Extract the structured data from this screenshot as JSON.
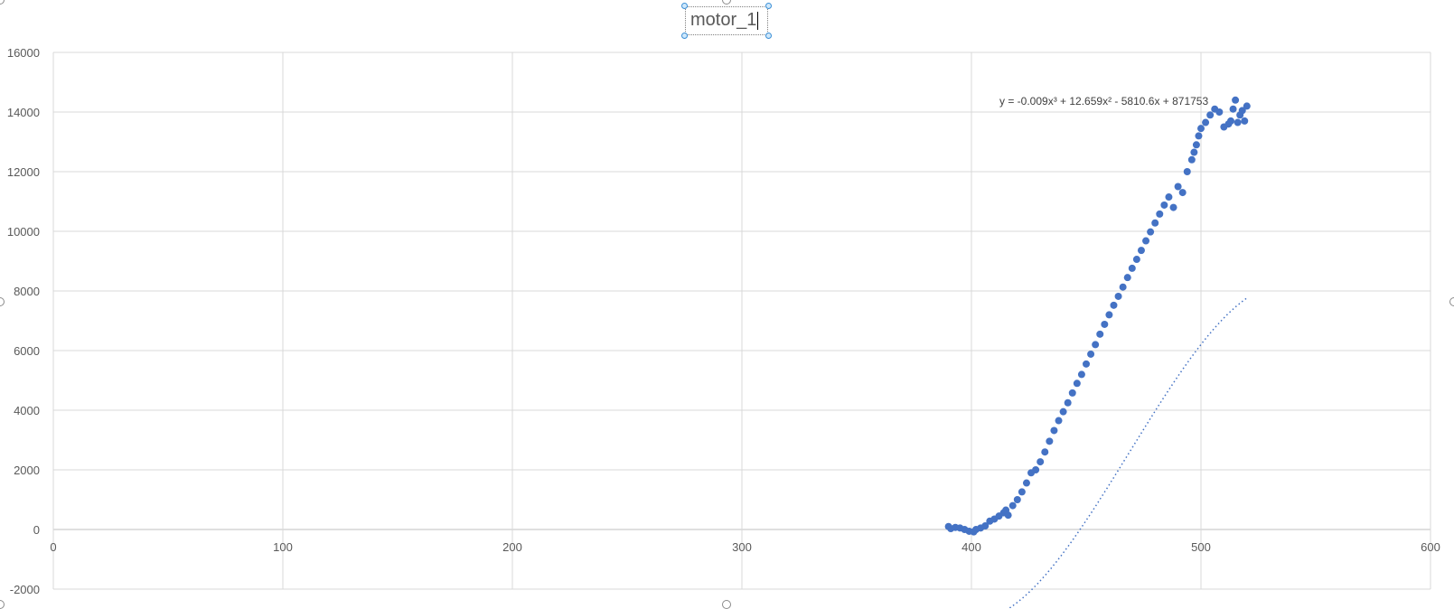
{
  "chart_data": {
    "type": "scatter",
    "title": "motor_1",
    "xlabel": "",
    "ylabel": "",
    "xlim": [
      0,
      600
    ],
    "ylim": [
      -2000,
      16000
    ],
    "x_ticks": [
      "0",
      "100",
      "200",
      "300",
      "400",
      "500",
      "600"
    ],
    "y_ticks": [
      "-2000",
      "0",
      "2000",
      "4000",
      "6000",
      "8000",
      "10000",
      "12000",
      "14000",
      "16000"
    ],
    "grid": true,
    "legend": "none",
    "marker_color": "#4472c4",
    "trendline": {
      "type": "polynomial-3",
      "equation": "y = -0.009x³ + 12.659x² - 5810.6x + 871753",
      "coefficients": [
        -0.009,
        12.659,
        -5810.6,
        871753
      ],
      "style": "dotted"
    },
    "series": [
      {
        "x": [
          390,
          391,
          393,
          395,
          397,
          399,
          401,
          402,
          404,
          406,
          408,
          410,
          412,
          414,
          415,
          416,
          418,
          420,
          422,
          424,
          426,
          428,
          430,
          432,
          434,
          436,
          438,
          440,
          442,
          444,
          446,
          448,
          450,
          452,
          454,
          456,
          458,
          460,
          462,
          464,
          466,
          468,
          470,
          472,
          474,
          476,
          478,
          480,
          482,
          484,
          486,
          488,
          490,
          492,
          494,
          496,
          497,
          498,
          499,
          500,
          502,
          504,
          506,
          508,
          510,
          512,
          513,
          514,
          515,
          516,
          517,
          518,
          519,
          520
        ],
        "y": [
          100,
          30,
          70,
          50,
          0,
          -60,
          -80,
          0,
          50,
          120,
          280,
          350,
          450,
          560,
          650,
          480,
          800,
          1000,
          1260,
          1560,
          1900,
          2000,
          2270,
          2600,
          2960,
          3320,
          3650,
          3950,
          4250,
          4580,
          4900,
          5200,
          5550,
          5880,
          6200,
          6550,
          6880,
          7200,
          7520,
          7820,
          8130,
          8450,
          8760,
          9060,
          9360,
          9680,
          9980,
          10280,
          10580,
          10880,
          11150,
          10800,
          11500,
          11300,
          12000,
          12400,
          12650,
          12900,
          13200,
          13450,
          13650,
          13900,
          14100,
          14000,
          13500,
          13600,
          13700,
          14100,
          14400,
          13650,
          13900,
          14050,
          13700,
          14200
        ]
      }
    ]
  },
  "ui": {
    "title_selected": true
  }
}
